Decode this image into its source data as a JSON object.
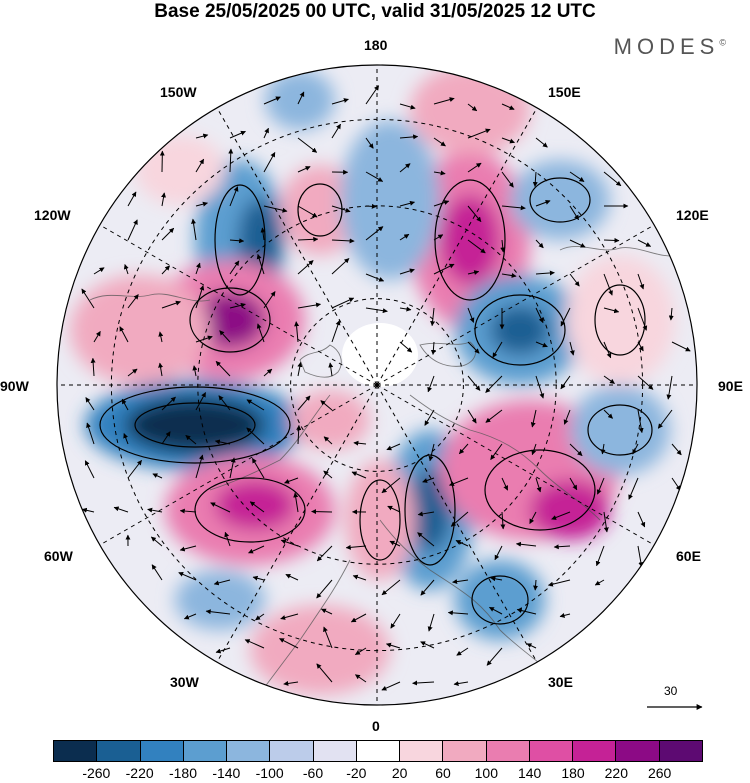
{
  "title": "Base 25/05/2025 00 UTC, valid 31/05/2025 12 UTC",
  "brand": "MODES",
  "brand_mark": "©",
  "longitude_labels": {
    "top": "180",
    "top_left": "150W",
    "top_right": "150E",
    "upper_left": "120W",
    "upper_right": "120E",
    "left": "90W",
    "right": "90E",
    "lower_left": "60W",
    "lower_right": "60E",
    "bottom_left": "30W",
    "bottom_right": "30E",
    "bottom": "0"
  },
  "reference_vector": {
    "label": "30"
  },
  "colorbar": {
    "tick_labels": [
      "-260",
      "-220",
      "-180",
      "-140",
      "-100",
      "-60",
      "-20",
      "20",
      "60",
      "100",
      "140",
      "180",
      "220",
      "260"
    ],
    "colors": [
      "#0b2d4f",
      "#1a5f93",
      "#3281bf",
      "#5c9ed0",
      "#8cb6de",
      "#bcccea",
      "#e2e2f2",
      "#ffffff",
      "#f8d6de",
      "#f1aac0",
      "#ea7db0",
      "#df4fa4",
      "#c52296",
      "#8c0a85",
      "#5d0a72"
    ]
  },
  "map_style": {
    "projection": "north-polar-stereographic",
    "coastline_color": "#555555",
    "graticule_style": "dashed",
    "wind_vectors": true
  }
}
